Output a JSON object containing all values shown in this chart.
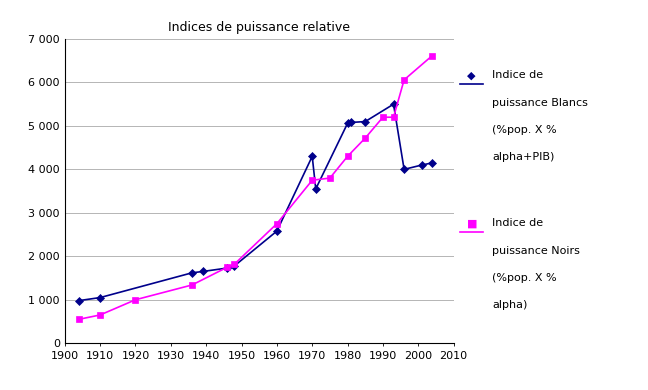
{
  "title": "Indices de puissance relative",
  "blancs": {
    "x": [
      1904,
      1910,
      1936,
      1939,
      1946,
      1948,
      1960,
      1970,
      1971,
      1980,
      1981,
      1985,
      1993,
      1996,
      2001,
      2004
    ],
    "y": [
      980,
      1050,
      1620,
      1650,
      1730,
      1780,
      2580,
      4300,
      3550,
      5060,
      5080,
      5100,
      5500,
      4000,
      4100,
      4150
    ],
    "color": "#00008B",
    "marker": "D",
    "label_line1": "Indice de",
    "label_line2": "puissance Blancs",
    "label_line3": "(%pop. X %",
    "label_line4": "alpha+PIB)"
  },
  "noirs": {
    "x": [
      1904,
      1910,
      1920,
      1936,
      1946,
      1948,
      1960,
      1970,
      1975,
      1980,
      1985,
      1990,
      1993,
      1996,
      2004
    ],
    "y": [
      550,
      650,
      1000,
      1340,
      1750,
      1820,
      2750,
      3750,
      3800,
      4300,
      4720,
      5200,
      5200,
      6060,
      6620
    ],
    "color": "#FF00FF",
    "marker": "s",
    "label_line1": "Indice de",
    "label_line2": "puissance Noirs",
    "label_line3": "(%pop. X %",
    "label_line4": "alpha)"
  },
  "xlim": [
    1900,
    2010
  ],
  "ylim": [
    0,
    7000
  ],
  "xticks": [
    1900,
    1910,
    1920,
    1930,
    1940,
    1950,
    1960,
    1970,
    1980,
    1990,
    2000,
    2010
  ],
  "yticks": [
    0,
    1000,
    2000,
    3000,
    4000,
    5000,
    6000,
    7000
  ],
  "ytick_labels": [
    "0",
    "1 000",
    "2 000",
    "3 000",
    "4 000",
    "5 000",
    "6 000",
    "7 000"
  ],
  "background_color": "#ffffff",
  "grid_color": "#aaaaaa",
  "title_fontsize": 9,
  "tick_fontsize": 8
}
